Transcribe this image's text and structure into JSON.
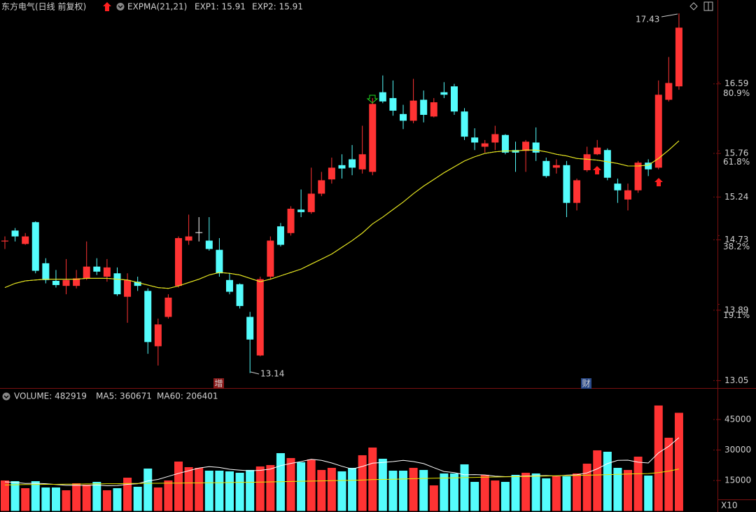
{
  "chart_data": [
    {
      "type": "candlestick",
      "title": "东方电气(日线 前复权)",
      "indicator": "EXPMA(21,21)",
      "up_color": "#ff3333",
      "down_color": "#54fcfc",
      "flat_color": "#ffffff",
      "open": [
        14.71,
        14.84,
        14.68,
        14.94,
        14.45,
        14.24,
        14.18,
        14.18,
        14.27,
        14.41,
        14.29,
        14.33,
        14.05,
        14.23,
        14.12,
        13.46,
        13.81,
        14.18,
        14.72,
        14.82,
        14.72,
        14.61,
        14.25,
        14.2,
        13.81,
        13.35,
        14.29,
        14.89,
        14.81,
        15.09,
        15.06,
        15.28,
        15.45,
        15.62,
        15.69,
        15.57,
        15.54,
        16.49,
        16.42,
        16.23,
        16.15,
        16.4,
        16.2,
        16.49,
        16.56,
        16.26,
        15.95,
        15.84,
        15.89,
        15.98,
        15.8,
        15.79,
        15.89,
        15.67,
        15.59,
        15.62,
        15.17,
        15.56,
        15.75,
        15.8,
        15.4,
        15.21,
        15.32,
        15.65,
        15.59,
        16.4,
        16.56
      ],
      "high": [
        14.77,
        14.87,
        14.81,
        14.95,
        14.51,
        14.37,
        14.5,
        14.37,
        14.71,
        14.51,
        14.5,
        14.4,
        14.33,
        14.29,
        14.15,
        13.79,
        14.08,
        14.77,
        15.03,
        15.0,
        15.0,
        14.75,
        14.33,
        14.21,
        13.87,
        14.29,
        14.77,
        14.93,
        15.13,
        15.33,
        15.59,
        15.54,
        15.71,
        15.75,
        15.86,
        16.09,
        16.42,
        16.69,
        16.63,
        16.34,
        16.65,
        16.51,
        16.42,
        16.61,
        16.59,
        16.3,
        16.06,
        15.92,
        16.09,
        15.99,
        15.9,
        15.92,
        16.07,
        15.71,
        15.69,
        15.67,
        15.46,
        15.84,
        15.92,
        15.82,
        15.46,
        15.4,
        15.67,
        15.69,
        16.63,
        16.91,
        17.43
      ],
      "low": [
        14.62,
        14.71,
        14.67,
        14.33,
        14.21,
        14.16,
        14.08,
        14.15,
        14.25,
        14.31,
        14.23,
        14.06,
        13.74,
        14.12,
        13.37,
        13.23,
        13.79,
        14.16,
        14.67,
        14.71,
        14.6,
        14.29,
        14.08,
        13.91,
        13.14,
        13.34,
        14.26,
        14.65,
        14.78,
        15.0,
        15.04,
        15.25,
        15.4,
        15.46,
        15.5,
        15.52,
        15.5,
        16.36,
        16.21,
        16.05,
        16.12,
        16.13,
        16.19,
        16.42,
        16.22,
        15.92,
        15.8,
        15.77,
        15.8,
        15.75,
        15.54,
        15.54,
        15.67,
        15.47,
        15.52,
        15.0,
        15.08,
        15.54,
        15.74,
        15.44,
        15.17,
        15.08,
        15.29,
        15.49,
        15.57,
        16.38,
        16.52
      ],
      "close": [
        14.72,
        14.77,
        14.77,
        14.36,
        14.25,
        14.19,
        14.25,
        14.27,
        14.41,
        14.35,
        14.4,
        14.08,
        14.25,
        14.18,
        13.51,
        13.72,
        14.04,
        14.75,
        14.77,
        14.82,
        14.62,
        14.33,
        14.11,
        13.94,
        13.54,
        14.26,
        14.72,
        14.67,
        15.1,
        15.06,
        15.28,
        15.44,
        15.59,
        15.58,
        15.59,
        15.75,
        16.35,
        16.38,
        16.27,
        16.15,
        16.39,
        16.22,
        16.37,
        16.46,
        16.26,
        15.96,
        15.89,
        15.88,
        15.99,
        15.77,
        15.77,
        15.9,
        15.77,
        15.49,
        15.62,
        15.17,
        15.44,
        15.75,
        15.83,
        15.47,
        15.32,
        15.32,
        15.65,
        15.57,
        16.46,
        16.6,
        17.26
      ],
      "series": [
        {
          "name": "EXP1: 15.91",
          "color": "#ffffff",
          "values": [
            14.16,
            14.21,
            14.24,
            14.25,
            14.26,
            14.26,
            14.26,
            14.26,
            14.27,
            14.27,
            14.27,
            14.26,
            14.25,
            14.22,
            14.19,
            14.16,
            14.15,
            14.18,
            14.22,
            14.26,
            14.31,
            14.34,
            14.33,
            14.31,
            14.27,
            14.23,
            14.26,
            14.3,
            14.34,
            14.38,
            14.44,
            14.5,
            14.56,
            14.64,
            14.72,
            14.81,
            14.92,
            15.0,
            15.09,
            15.18,
            15.28,
            15.37,
            15.45,
            15.53,
            15.6,
            15.67,
            15.72,
            15.76,
            15.78,
            15.79,
            15.79,
            15.8,
            15.8,
            15.78,
            15.75,
            15.73,
            15.7,
            15.69,
            15.68,
            15.66,
            15.64,
            15.61,
            15.61,
            15.62,
            15.7,
            15.8,
            15.91
          ]
        },
        {
          "name": "EXP2: 15.91",
          "color": "#e6e600",
          "values": [
            14.16,
            14.21,
            14.24,
            14.25,
            14.26,
            14.26,
            14.26,
            14.26,
            14.27,
            14.27,
            14.27,
            14.26,
            14.25,
            14.22,
            14.19,
            14.16,
            14.15,
            14.18,
            14.22,
            14.26,
            14.31,
            14.34,
            14.33,
            14.31,
            14.27,
            14.23,
            14.26,
            14.3,
            14.34,
            14.38,
            14.44,
            14.5,
            14.56,
            14.64,
            14.72,
            14.81,
            14.92,
            15.0,
            15.09,
            15.18,
            15.28,
            15.37,
            15.45,
            15.53,
            15.6,
            15.67,
            15.72,
            15.76,
            15.78,
            15.79,
            15.79,
            15.8,
            15.8,
            15.78,
            15.75,
            15.73,
            15.7,
            15.69,
            15.68,
            15.66,
            15.64,
            15.61,
            15.61,
            15.62,
            15.7,
            15.8,
            15.91
          ]
        }
      ],
      "ylim": [
        12.97,
        17.59
      ],
      "yticks": [
        16.59,
        15.76,
        15.24,
        14.73,
        13.89,
        13.05
      ],
      "fib_ticks": [
        {
          "value": 16.61,
          "label": "80.9%"
        },
        {
          "value": 15.79,
          "label": "61.8%"
        },
        {
          "value": 14.78,
          "label": "38.2%"
        },
        {
          "value": 13.96,
          "label": "19.1%"
        }
      ],
      "events": [
        "增",
        "财"
      ]
    },
    {
      "type": "bar",
      "title": "VOLUME: 482919",
      "unit_label": "X10",
      "values": [
        15000,
        14654,
        11206,
        14654,
        11551,
        11551,
        10172,
        13620,
        12930,
        14309,
        10172,
        11206,
        16378,
        11896,
        20860,
        11551,
        15000,
        24308,
        21550,
        21205,
        19826,
        19826,
        19481,
        18792,
        20171,
        21895,
        22584,
        28446,
        26032,
        23964,
        25343,
        20171,
        21205,
        19481,
        21205,
        27412,
        31204,
        25688,
        19826,
        19826,
        21205,
        20171,
        12585,
        18447,
        18447,
        22929,
        14309,
        17757,
        15000,
        14309,
        17757,
        18792,
        18447,
        16033,
        17068,
        17068,
        18447,
        23274,
        29825,
        29136,
        21205,
        20171,
        26722,
        17412,
        51892,
        36032,
        48292
      ],
      "series": [
        {
          "name": "MA5: 360671",
          "color": "#ffffff",
          "values": [
            14300,
            14100,
            13500,
            13600,
            13400,
            13000,
            12600,
            12700,
            12500,
            12800,
            12400,
            12500,
            13100,
            13400,
            14800,
            15500,
            17000,
            18500,
            19800,
            21100,
            21800,
            21400,
            20500,
            20100,
            19800,
            20000,
            20600,
            22300,
            23400,
            24300,
            25400,
            24900,
            23600,
            22000,
            20600,
            21900,
            23500,
            23900,
            24300,
            24900,
            24300,
            23300,
            21300,
            19400,
            18900,
            17800,
            17900,
            17700,
            17100,
            16900,
            17000,
            17200,
            17300,
            17400,
            17200,
            17600,
            17800,
            18700,
            20700,
            23300,
            24900,
            25000,
            24000,
            23600,
            28600,
            31800,
            36067
          ]
        },
        {
          "name": "MA60: 206401",
          "color": "#e6e600",
          "values": [
            12800,
            12900,
            13000,
            13000,
            13100,
            13100,
            13200,
            13200,
            13300,
            13300,
            13400,
            13400,
            13500,
            13500,
            13600,
            13600,
            13700,
            13700,
            13800,
            13800,
            13900,
            13900,
            14000,
            14100,
            14100,
            14200,
            14300,
            14400,
            14500,
            14600,
            14700,
            14800,
            14900,
            15000,
            15100,
            15200,
            15400,
            15500,
            15600,
            15700,
            15900,
            16000,
            16100,
            16200,
            16300,
            16400,
            16500,
            16600,
            16700,
            16800,
            16900,
            17000,
            17100,
            17200,
            17300,
            17400,
            17500,
            17600,
            17700,
            17900,
            18000,
            18200,
            18300,
            18400,
            18900,
            19600,
            20640
          ]
        }
      ],
      "ylim": [
        0,
        59800
      ],
      "yticks": [
        15000,
        30000,
        45000
      ]
    }
  ]
}
